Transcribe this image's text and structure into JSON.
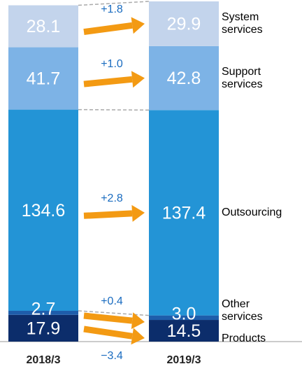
{
  "chart_data": {
    "type": "stacked-bar",
    "categories": [
      "2018/3",
      "2019/3"
    ],
    "series": [
      {
        "name": "Products",
        "color": "#0c2d6b",
        "values": [
          17.9,
          14.5
        ]
      },
      {
        "name": "Other services",
        "color": "#1e5dab",
        "values": [
          2.7,
          3.0
        ],
        "value_labels": [
          "2.7",
          "3.0"
        ]
      },
      {
        "name": "Outsourcing",
        "color": "#2394d6",
        "values": [
          134.6,
          137.4
        ]
      },
      {
        "name": "Support services",
        "color": "#7db3e6",
        "values": [
          41.7,
          42.8
        ]
      },
      {
        "name": "System services",
        "color": "#c3d4ec",
        "values": [
          28.1,
          29.9
        ]
      }
    ],
    "changes": [
      {
        "value": -3.4,
        "label": "−3.4"
      },
      {
        "value": 0.4,
        "label": "+0.4"
      },
      {
        "value": 2.8,
        "label": "+2.8"
      },
      {
        "value": 1.0,
        "label": "+1.0"
      },
      {
        "value": 1.8,
        "label": "+1.8"
      }
    ],
    "arrow_color": "#f39a13",
    "change_color": "#1a6cc0"
  }
}
